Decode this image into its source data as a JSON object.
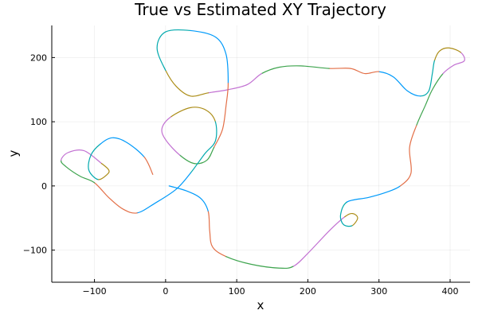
{
  "chart_data": {
    "type": "line",
    "title": "True vs Estimated XY Trajectory",
    "xlabel": "x",
    "ylabel": "y",
    "xlim": [
      -160,
      428
    ],
    "ylim": [
      -150,
      250
    ],
    "xticks": [
      -100,
      0,
      100,
      200,
      300,
      400
    ],
    "yticks": [
      -100,
      0,
      100,
      200
    ],
    "xtick_labels": [
      "−100",
      "0",
      "100",
      "200",
      "300",
      "400"
    ],
    "ytick_labels": [
      "−100",
      "0",
      "100",
      "200"
    ],
    "grid": true,
    "legend": "none",
    "palette": [
      "#009AFA",
      "#E36F47",
      "#3EA44E",
      "#C271D2",
      "#AC8D18",
      "#00A9AD"
    ],
    "trajectory": [
      [
        5,
        0
      ],
      [
        30,
        -8
      ],
      [
        50,
        -20
      ],
      [
        60,
        -40
      ],
      [
        62,
        -70
      ],
      [
        66,
        -95
      ],
      [
        85,
        -110
      ],
      [
        120,
        -122
      ],
      [
        160,
        -128
      ],
      [
        180,
        -125
      ],
      [
        200,
        -105
      ],
      [
        230,
        -70
      ],
      [
        252,
        -48
      ],
      [
        263,
        -43
      ],
      [
        270,
        -50
      ],
      [
        262,
        -62
      ],
      [
        250,
        -60
      ],
      [
        246,
        -45
      ],
      [
        255,
        -25
      ],
      [
        285,
        -18
      ],
      [
        310,
        -10
      ],
      [
        330,
        0
      ],
      [
        345,
        20
      ],
      [
        343,
        60
      ],
      [
        353,
        95
      ],
      [
        365,
        125
      ],
      [
        375,
        150
      ],
      [
        390,
        175
      ],
      [
        405,
        188
      ],
      [
        420,
        195
      ],
      [
        415,
        208
      ],
      [
        398,
        215
      ],
      [
        385,
        210
      ],
      [
        378,
        195
      ],
      [
        375,
        175
      ],
      [
        370,
        148
      ],
      [
        358,
        140
      ],
      [
        340,
        148
      ],
      [
        320,
        170
      ],
      [
        300,
        178
      ],
      [
        280,
        175
      ],
      [
        260,
        183
      ],
      [
        230,
        183
      ],
      [
        190,
        187
      ],
      [
        160,
        185
      ],
      [
        135,
        175
      ],
      [
        115,
        158
      ],
      [
        88,
        150
      ],
      [
        60,
        145
      ],
      [
        35,
        140
      ],
      [
        15,
        155
      ],
      [
        0,
        180
      ],
      [
        -12,
        215
      ],
      [
        0,
        240
      ],
      [
        35,
        242
      ],
      [
        70,
        232
      ],
      [
        85,
        205
      ],
      [
        88,
        160
      ],
      [
        85,
        125
      ],
      [
        80,
        88
      ],
      [
        68,
        60
      ],
      [
        58,
        40
      ],
      [
        40,
        35
      ],
      [
        20,
        48
      ],
      [
        0,
        72
      ],
      [
        -5,
        90
      ],
      [
        8,
        108
      ],
      [
        35,
        122
      ],
      [
        57,
        118
      ],
      [
        70,
        100
      ],
      [
        70,
        70
      ],
      [
        55,
        50
      ],
      [
        35,
        20
      ],
      [
        15,
        -5
      ],
      [
        -15,
        -27
      ],
      [
        -40,
        -42
      ],
      [
        -60,
        -36
      ],
      [
        -80,
        -18
      ],
      [
        -100,
        5
      ],
      [
        -120,
        15
      ],
      [
        -140,
        30
      ],
      [
        -147,
        40
      ],
      [
        -137,
        52
      ],
      [
        -115,
        55
      ],
      [
        -90,
        35
      ],
      [
        -80,
        25
      ],
      [
        -82,
        18
      ],
      [
        -95,
        10
      ],
      [
        -108,
        25
      ],
      [
        -105,
        48
      ],
      [
        -92,
        65
      ],
      [
        -75,
        75
      ],
      [
        -55,
        68
      ],
      [
        -30,
        45
      ],
      [
        -18,
        18
      ]
    ]
  }
}
